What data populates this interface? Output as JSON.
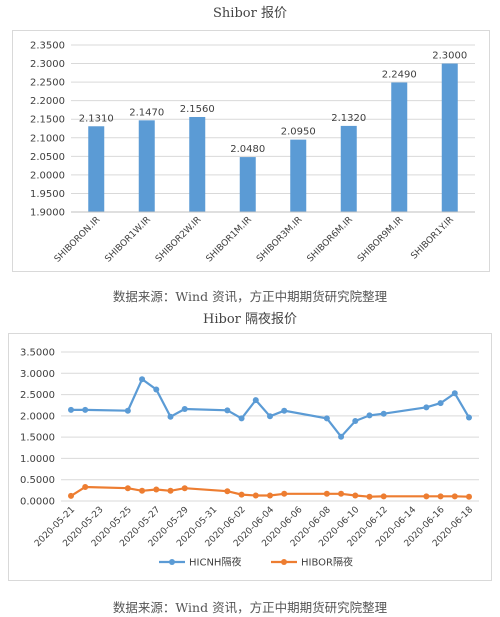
{
  "chart_data": [
    {
      "type": "bar",
      "title": "Shibor 报价",
      "categories": [
        "SHIBORON.IR",
        "SHIBOR1W.IR",
        "SHIBOR2W.IR",
        "SHIBOR1M.IR",
        "SHIBOR3M.IR",
        "SHIBOR6M.IR",
        "SHIBOR9M.IR",
        "SHIBOR1Y.IR"
      ],
      "values": [
        2.131,
        2.147,
        2.156,
        2.048,
        2.095,
        2.132,
        2.249,
        2.3
      ],
      "data_labels": [
        "2.1310",
        "2.1470",
        "2.1560",
        "2.0480",
        "2.0950",
        "2.1320",
        "2.2490",
        "2.3000"
      ],
      "ylim": [
        1.9,
        2.35
      ],
      "yticks": [
        "1.9000",
        "1.9500",
        "2.0000",
        "2.0500",
        "2.1000",
        "2.1500",
        "2.2000",
        "2.2500",
        "2.3000",
        "2.3500"
      ],
      "grid": true,
      "color": "#5b9bd5",
      "source": "数据来源：Wind 资讯，方正中期期货研究院整理"
    },
    {
      "type": "line",
      "title": "Hibor 隔夜报价",
      "xticks": [
        "2020-05-21",
        "2020-05-23",
        "2020-05-25",
        "2020-05-27",
        "2020-05-29",
        "2020-05-31",
        "2020-06-02",
        "2020-06-04",
        "2020-06-06",
        "2020-06-08",
        "2020-06-10",
        "2020-06-12",
        "2020-06-14",
        "2020-06-16",
        "2020-06-18"
      ],
      "ylim": [
        0,
        3.5
      ],
      "yticks": [
        "0.0000",
        "0.5000",
        "1.0000",
        "1.5000",
        "2.0000",
        "2.5000",
        "3.0000",
        "3.5000"
      ],
      "grid": true,
      "legend_position": "bottom",
      "series": [
        {
          "name": "HICNH隔夜",
          "color": "#5b9bd5",
          "x": [
            "2020-05-21",
            "2020-05-22",
            "2020-05-25",
            "2020-05-26",
            "2020-05-27",
            "2020-05-28",
            "2020-05-29",
            "2020-06-01",
            "2020-06-02",
            "2020-06-03",
            "2020-06-04",
            "2020-06-05",
            "2020-06-08",
            "2020-06-09",
            "2020-06-10",
            "2020-06-11",
            "2020-06-12",
            "2020-06-15",
            "2020-06-16",
            "2020-06-17",
            "2020-06-18"
          ],
          "values": [
            2.14,
            2.14,
            2.12,
            2.86,
            2.62,
            1.98,
            2.16,
            2.13,
            1.94,
            2.37,
            1.99,
            2.12,
            1.94,
            1.51,
            1.88,
            2.01,
            2.05,
            2.2,
            2.3,
            2.53,
            1.96
          ]
        },
        {
          "name": "HIBOR隔夜",
          "color": "#ed7d31",
          "x": [
            "2020-05-21",
            "2020-05-22",
            "2020-05-25",
            "2020-05-26",
            "2020-05-27",
            "2020-05-28",
            "2020-05-29",
            "2020-06-01",
            "2020-06-02",
            "2020-06-03",
            "2020-06-04",
            "2020-06-05",
            "2020-06-08",
            "2020-06-09",
            "2020-06-10",
            "2020-06-11",
            "2020-06-12",
            "2020-06-15",
            "2020-06-16",
            "2020-06-17",
            "2020-06-18"
          ],
          "values": [
            0.12,
            0.33,
            0.3,
            0.24,
            0.27,
            0.24,
            0.3,
            0.23,
            0.15,
            0.13,
            0.13,
            0.17,
            0.17,
            0.17,
            0.13,
            0.1,
            0.11,
            0.11,
            0.11,
            0.11,
            0.1
          ]
        }
      ],
      "source": "数据来源：Wind 资讯，方正中期期货研究院整理"
    }
  ]
}
